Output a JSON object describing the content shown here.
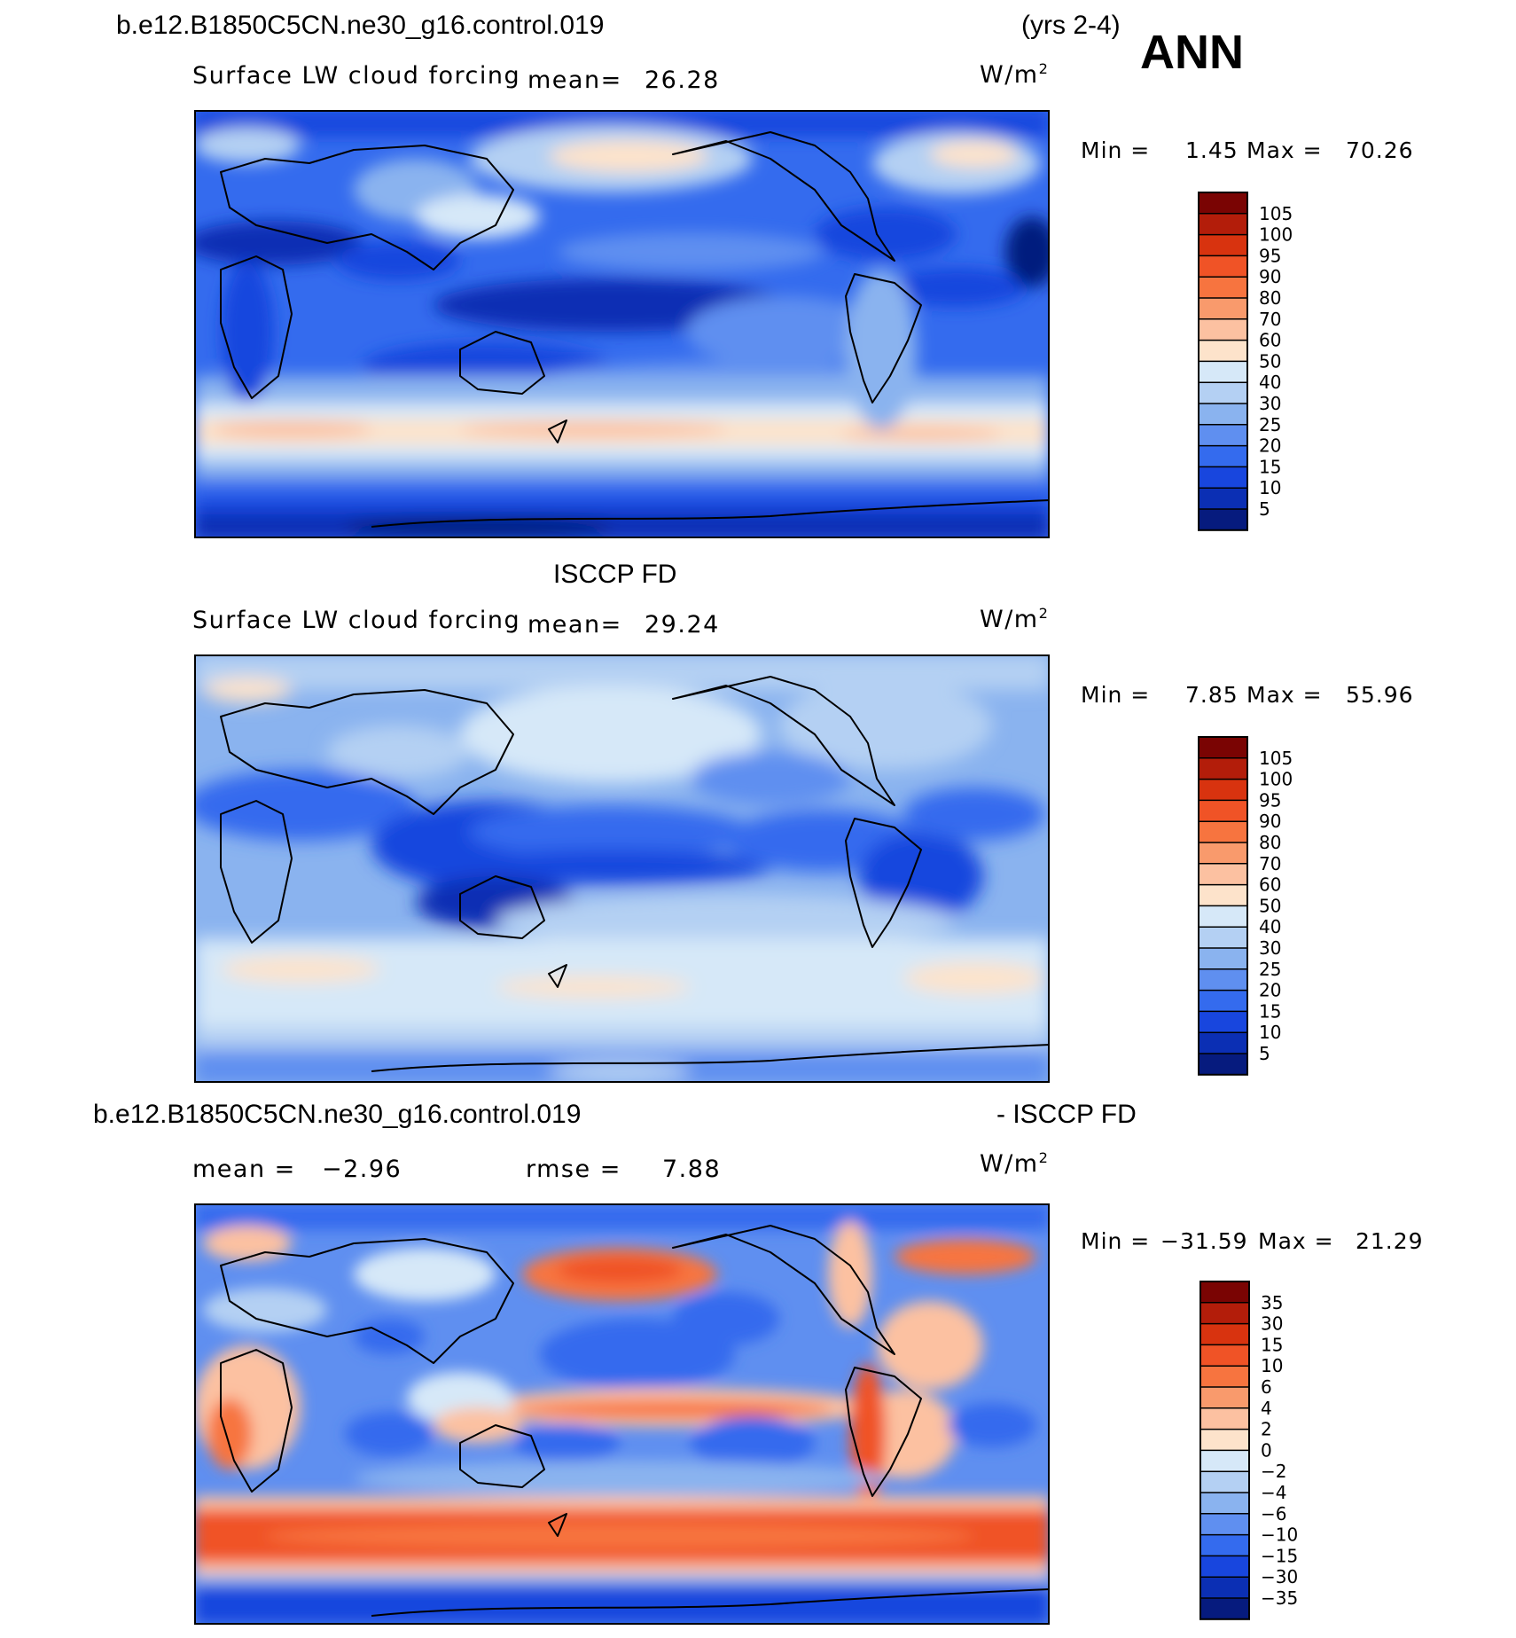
{
  "header": {
    "case_name": "b.e12.B1850C5CN.ne30_g16.control.019",
    "years": "(yrs 2-4)",
    "season": "ANN"
  },
  "panels": [
    {
      "id": "model",
      "subtitle_left": "Surface LW cloud forcing",
      "stat_label": "mean=",
      "stat_value": "26.28",
      "units": "W/m",
      "units_sup": "2",
      "min_label": "Min =",
      "min_value": "1.45",
      "max_label": "Max =",
      "max_value": "70.26"
    },
    {
      "id": "obs",
      "title": "ISCCP FD",
      "subtitle_left": "Surface LW cloud forcing",
      "stat_label": "mean=",
      "stat_value": "29.24",
      "units": "W/m",
      "units_sup": "2",
      "min_label": "Min =",
      "min_value": "7.85",
      "max_label": "Max =",
      "max_value": "55.96"
    },
    {
      "id": "diff",
      "title_left": "b.e12.B1850C5CN.ne30_g16.control.019",
      "title_right": "- ISCCP FD",
      "mean_label": "mean =",
      "mean_value": "−2.96",
      "rmse_label": "rmse =",
      "rmse_value": "7.88",
      "units": "W/m",
      "units_sup": "2",
      "min_label": "Min =",
      "min_value": "−31.59",
      "max_label": "Max =",
      "max_value": "21.29"
    }
  ],
  "colorbars": {
    "field": {
      "labels": [
        "105",
        "100",
        "95",
        "90",
        "80",
        "70",
        "60",
        "50",
        "40",
        "30",
        "25",
        "20",
        "15",
        "10",
        "5"
      ],
      "colors": [
        "#7a0403",
        "#b31d0a",
        "#d8330f",
        "#f05326",
        "#f7743f",
        "#f99a6c",
        "#fcc1a1",
        "#fde3cb",
        "#d6e8f8",
        "#b4d0f3",
        "#8ab3ef",
        "#5f8ff0",
        "#346bee",
        "#1846de",
        "#0b2fb4",
        "#061b7e"
      ]
    },
    "diff": {
      "labels": [
        "35",
        "30",
        "15",
        "10",
        "6",
        "4",
        "2",
        "0",
        "−2",
        "−4",
        "−6",
        "−10",
        "−15",
        "−30",
        "−35"
      ],
      "colors": [
        "#7a0403",
        "#b31d0a",
        "#d8330f",
        "#f05326",
        "#f7743f",
        "#f99a6c",
        "#fcc1a1",
        "#fde3cb",
        "#d6e8f8",
        "#b4d0f3",
        "#8ab3ef",
        "#5f8ff0",
        "#346bee",
        "#1846de",
        "#0b2fb4",
        "#061b7e"
      ]
    }
  }
}
